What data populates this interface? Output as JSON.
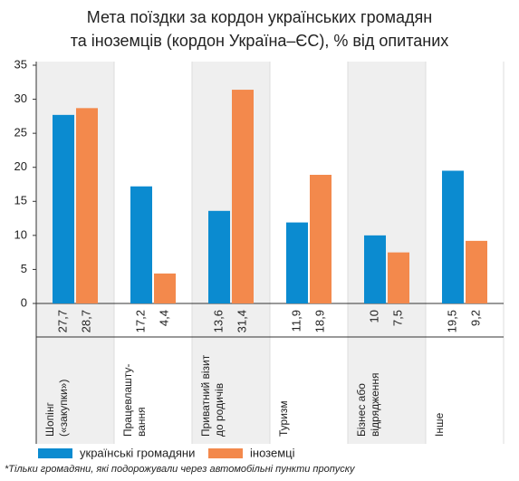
{
  "chart_data": {
    "type": "bar",
    "title": "Мета поїздки за кордон українських громадян\nта іноземців (кордон Україна–ЄС), % від опитаних",
    "categories": [
      "Шопінг\n(«закупки»)",
      "Працевлашту-\nвання",
      "Приватний візит\nдо родичів",
      "Туризм",
      "Бізнес або\nвідрядження",
      "Інше"
    ],
    "series": [
      {
        "name": "українські громадяни",
        "color": "#0b8bd0",
        "values": [
          27.7,
          17.2,
          13.6,
          11.9,
          10,
          19.5
        ],
        "value_labels": [
          "27,7",
          "17,2",
          "13,6",
          "11,9",
          "10",
          "19,5"
        ]
      },
      {
        "name": "іноземці",
        "color": "#f3894c",
        "values": [
          28.7,
          4.4,
          31.4,
          18.9,
          7.5,
          9.2
        ],
        "value_labels": [
          "28,7",
          "4,4",
          "31,4",
          "18,9",
          "7,5",
          "9,2"
        ]
      }
    ],
    "ylim": [
      0,
      35
    ],
    "yticks": [
      0,
      5,
      10,
      15,
      20,
      25,
      30,
      35
    ],
    "footnote": "*Тільки громадяни, які подорожували через автомобільні пункти пропуску"
  }
}
